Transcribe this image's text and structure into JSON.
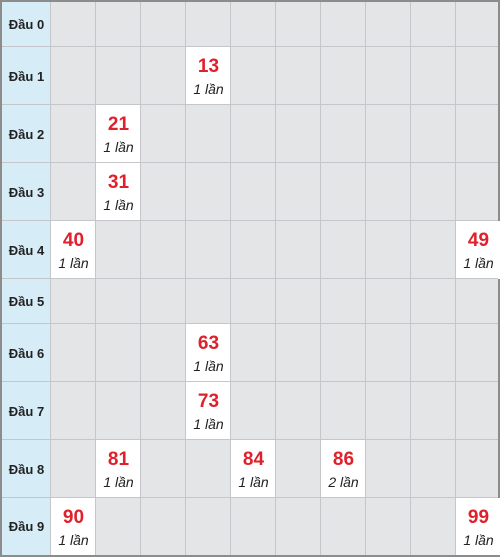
{
  "rows": [
    {
      "label": "Đầu 0",
      "cells": [
        null,
        null,
        null,
        null,
        null,
        null,
        null,
        null,
        null,
        null
      ]
    },
    {
      "label": "Đầu 1",
      "cells": [
        null,
        null,
        null,
        {
          "number": "13",
          "count": "1 lần"
        },
        null,
        null,
        null,
        null,
        null,
        null
      ]
    },
    {
      "label": "Đầu 2",
      "cells": [
        null,
        {
          "number": "21",
          "count": "1 lần"
        },
        null,
        null,
        null,
        null,
        null,
        null,
        null,
        null
      ]
    },
    {
      "label": "Đầu 3",
      "cells": [
        null,
        {
          "number": "31",
          "count": "1 lần"
        },
        null,
        null,
        null,
        null,
        null,
        null,
        null,
        null
      ]
    },
    {
      "label": "Đầu 4",
      "cells": [
        {
          "number": "40",
          "count": "1 lần"
        },
        null,
        null,
        null,
        null,
        null,
        null,
        null,
        null,
        {
          "number": "49",
          "count": "1 lần"
        }
      ]
    },
    {
      "label": "Đầu 5",
      "cells": [
        null,
        null,
        null,
        null,
        null,
        null,
        null,
        null,
        null,
        null
      ]
    },
    {
      "label": "Đầu 6",
      "cells": [
        null,
        null,
        null,
        {
          "number": "63",
          "count": "1 lần"
        },
        null,
        null,
        null,
        null,
        null,
        null
      ]
    },
    {
      "label": "Đầu 7",
      "cells": [
        null,
        null,
        null,
        {
          "number": "73",
          "count": "1 lần"
        },
        null,
        null,
        null,
        null,
        null,
        null
      ]
    },
    {
      "label": "Đầu 8",
      "cells": [
        null,
        {
          "number": "81",
          "count": "1 lần"
        },
        null,
        null,
        {
          "number": "84",
          "count": "1 lần"
        },
        null,
        {
          "number": "86",
          "count": "2 lần"
        },
        null,
        null,
        null
      ]
    },
    {
      "label": "Đầu 9",
      "cells": [
        {
          "number": "90",
          "count": "1 lần"
        },
        null,
        null,
        null,
        null,
        null,
        null,
        null,
        null,
        {
          "number": "99",
          "count": "1 lần"
        }
      ]
    }
  ],
  "colors": {
    "number": "#e0202b",
    "header_bg": "#d6ecf6",
    "empty_bg": "#e4e5e7",
    "hit_bg": "#ffffff"
  }
}
